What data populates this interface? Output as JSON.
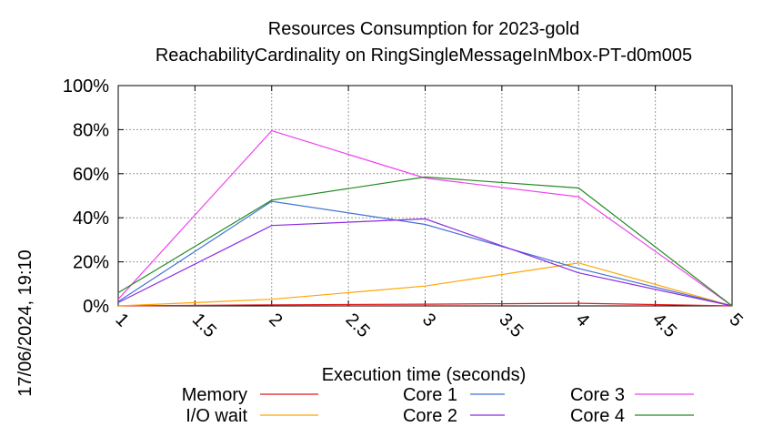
{
  "chart_data": {
    "type": "line",
    "title": "Resources Consumption for 2023-gold",
    "subtitle": "ReachabilityCardinality on RingSingleMessageInMbox-PT-d0m005",
    "xlabel": "Execution time (seconds)",
    "ylabel": "",
    "side_label": "17/06/2024, 19:10",
    "xlim": [
      1,
      5
    ],
    "ylim": [
      0,
      100
    ],
    "x_ticks": [
      1,
      1.5,
      2,
      2.5,
      3,
      3.5,
      4,
      4.5,
      5
    ],
    "x_tick_labels": [
      "1",
      "1.5",
      "2",
      "2.5",
      "3",
      "3.5",
      "4",
      "4.5",
      "5"
    ],
    "y_ticks": [
      0,
      20,
      40,
      60,
      80,
      100
    ],
    "y_tick_labels": [
      "0%",
      "20%",
      "40%",
      "60%",
      "80%",
      "100%"
    ],
    "grid": true,
    "legend_position": "bottom",
    "series": [
      {
        "name": "Memory",
        "color": "#e41a1c",
        "x": [
          1,
          2,
          3,
          4,
          5
        ],
        "values": [
          0,
          0.5,
          0.8,
          1.2,
          0
        ]
      },
      {
        "name": "I/O wait",
        "color": "#ffa500",
        "x": [
          1,
          2,
          3,
          4,
          5
        ],
        "values": [
          0,
          3,
          9,
          19.5,
          0
        ]
      },
      {
        "name": "Core 1",
        "color": "#4472d6",
        "x": [
          1,
          2,
          3,
          4,
          5
        ],
        "values": [
          2,
          47.5,
          37,
          17,
          0
        ]
      },
      {
        "name": "Core 2",
        "color": "#8b2be2",
        "x": [
          1,
          2,
          3,
          4,
          5
        ],
        "values": [
          1.5,
          36.5,
          39.5,
          15,
          0
        ]
      },
      {
        "name": "Core 3",
        "color": "#ee44ee",
        "x": [
          1,
          2,
          3,
          4,
          5
        ],
        "values": [
          3,
          79.5,
          58,
          49.5,
          0
        ]
      },
      {
        "name": "Core 4",
        "color": "#228b22",
        "x": [
          1,
          2,
          3,
          4,
          5
        ],
        "values": [
          6,
          48,
          58.5,
          53.5,
          0
        ]
      }
    ]
  }
}
